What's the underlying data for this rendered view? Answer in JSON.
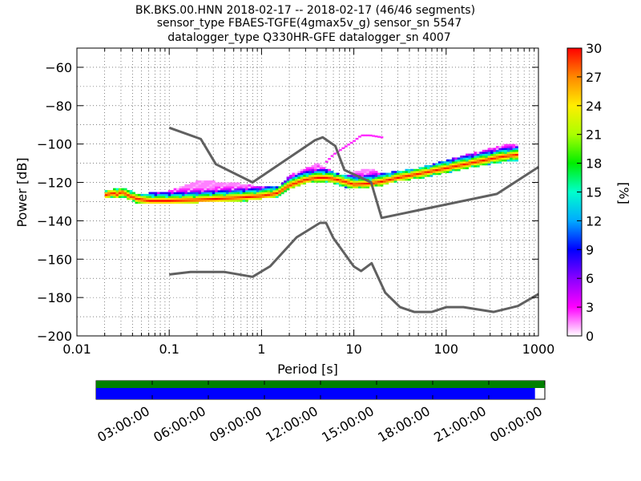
{
  "title_lines": [
    "BK.BKS.00.HNN   2018-02-17 -- 2018-02-17  (46/46 segments)",
    "sensor_type FBAES-TGFE(4gmax5v_g) sensor_sn 5547",
    "datalogger_type Q330HR-GFE datalogger_sn 4007"
  ],
  "chart_data": [
    {
      "type": "heatmap",
      "xlabel": "Period [s]",
      "ylabel": "Power [dB]",
      "xscale": "log",
      "xlim": [
        0.01,
        1000
      ],
      "ylim": [
        -200,
        -50
      ],
      "xticks": [
        0.01,
        0.1,
        1,
        10,
        100,
        1000
      ],
      "xtick_labels": [
        "0.01",
        "0.1",
        "1",
        "10",
        "100",
        "1000"
      ],
      "yticks": [
        -200,
        -180,
        -160,
        -140,
        -120,
        -100,
        -80,
        -60
      ],
      "ytick_labels": [
        "−200",
        "−180",
        "−160",
        "−140",
        "−120",
        "−100",
        "−80",
        "−60"
      ],
      "grid": true,
      "colorbar": {
        "label": "[%]",
        "range": [
          0,
          30
        ],
        "ticks": [
          0,
          3,
          6,
          9,
          12,
          15,
          18,
          21,
          24,
          27,
          30
        ],
        "colormap": [
          "#ffffff",
          "#ff00ff",
          "#8800ff",
          "#0000ff",
          "#00aaff",
          "#00ffcc",
          "#00ee00",
          "#aaff00",
          "#ffee00",
          "#ff8800",
          "#ff0000"
        ]
      },
      "noise_model_color": "#606060",
      "nhnm": {
        "period": [
          0.1,
          0.22,
          0.32,
          0.8,
          3.8,
          4.6,
          6.3,
          7.9,
          15.4,
          20,
          354.8,
          1000
        ],
        "power": [
          -91.5,
          -97.4,
          -110.5,
          -120,
          -98,
          -96.5,
          -101,
          -113.5,
          -120,
          -138.5,
          -126,
          -112
        ]
      },
      "nlnm": {
        "period": [
          0.1,
          0.17,
          0.4,
          0.8,
          1.24,
          2.4,
          4.3,
          5,
          6,
          10,
          12,
          15.6,
          21.9,
          31.6,
          45,
          70,
          101,
          154,
          328,
          600,
          1000
        ],
        "power": [
          -168,
          -166.7,
          -166.7,
          -169.2,
          -163.7,
          -148.6,
          -141.1,
          -141.1,
          -149,
          -163.8,
          -166.2,
          -162.1,
          -177.5,
          -185,
          -187.5,
          -187.5,
          -185,
          -185,
          -187.5,
          -184.4,
          -178.2
        ]
      },
      "ppsd_mode": {
        "period": [
          0.02,
          0.025,
          0.028,
          0.03,
          0.035,
          0.045,
          0.06,
          0.1,
          0.2,
          0.5,
          1,
          1.5,
          2,
          3,
          4,
          5,
          6,
          8,
          10,
          15,
          20,
          30,
          50,
          100,
          200,
          400,
          600
        ],
        "power": [
          -127,
          -126,
          -127,
          -125,
          -127,
          -129,
          -130,
          -130,
          -129.5,
          -128.5,
          -127.5,
          -126,
          -122,
          -119,
          -118,
          -118,
          -118.5,
          -120,
          -121.5,
          -121,
          -120,
          -118,
          -116,
          -113,
          -110,
          -107,
          -106
        ]
      },
      "ppsd_spread": {
        "period": [
          0.02,
          0.03,
          0.05,
          0.06,
          0.1,
          0.2,
          0.5,
          1,
          1.5,
          2,
          3,
          4,
          5,
          6,
          8,
          10,
          15,
          20,
          30,
          50,
          100,
          200,
          400,
          600
        ],
        "lower": [
          -128,
          -127,
          -131,
          -131,
          -131,
          -130,
          -130,
          -128,
          -127,
          -123,
          -120,
          -119.5,
          -119.5,
          -120,
          -122,
          -123,
          -122,
          -121,
          -119,
          -117.5,
          -114.5,
          -111.5,
          -109,
          -109
        ],
        "upper": [
          -126,
          -124,
          -128,
          -127,
          -126,
          -120.5,
          -121.5,
          -123.5,
          -124,
          -118,
          -114,
          -111.5,
          -114,
          -116,
          -118,
          -116,
          -114,
          -117,
          -115.5,
          -114,
          -110,
          -106,
          -102,
          -101.5
        ]
      },
      "ppsd_outlier_track": {
        "period": [
          5,
          6,
          8,
          10,
          12,
          15,
          20
        ],
        "power": [
          -110,
          -106,
          -102,
          -99,
          -96,
          -96,
          -97
        ]
      }
    },
    {
      "type": "timeline",
      "tick_labels": [
        "03:00:00",
        "06:00:00",
        "09:00:00",
        "12:00:00",
        "15:00:00",
        "18:00:00",
        "21:00:00",
        "00:00:00"
      ],
      "segments": [
        {
          "row": "top",
          "start": 0,
          "end": 1,
          "color": "#008000"
        },
        {
          "row": "bottom",
          "start": 0,
          "end": 0.978,
          "color": "#0000ff"
        }
      ]
    }
  ]
}
